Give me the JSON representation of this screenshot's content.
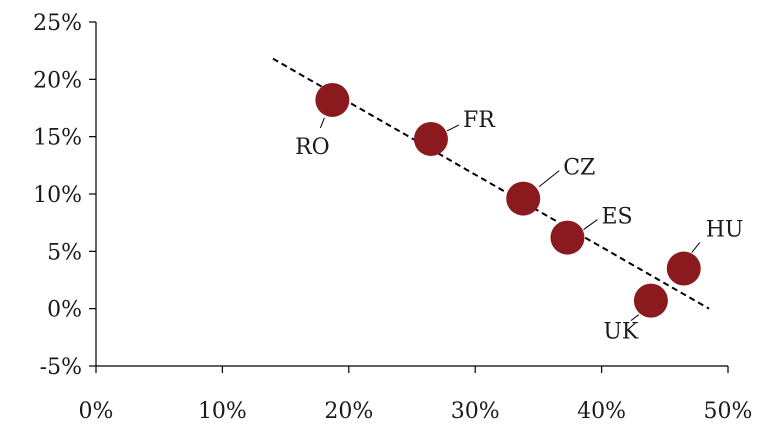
{
  "chart_data": {
    "type": "scatter",
    "title": "",
    "xlabel": "",
    "ylabel": "",
    "xlim": [
      0,
      50
    ],
    "ylim": [
      -5,
      25
    ],
    "x_ticks": [
      0,
      10,
      20,
      30,
      40,
      50
    ],
    "y_ticks": [
      -5,
      0,
      5,
      10,
      15,
      20,
      25
    ],
    "x_tick_labels": [
      "0%",
      "10%",
      "20%",
      "30%",
      "40%",
      "50%"
    ],
    "y_tick_labels": [
      "-5%",
      "0%",
      "5%",
      "10%",
      "15%",
      "20%",
      "25%"
    ],
    "grid": false,
    "legend": "none",
    "marker_color": "#8b1a1f",
    "points": [
      {
        "label": "RO",
        "x": 18.7,
        "y": 18.2
      },
      {
        "label": "FR",
        "x": 26.5,
        "y": 14.8
      },
      {
        "label": "CZ",
        "x": 33.8,
        "y": 9.6
      },
      {
        "label": "ES",
        "x": 37.3,
        "y": 6.2
      },
      {
        "label": "UK",
        "x": 43.9,
        "y": 0.7
      },
      {
        "label": "HU",
        "x": 46.5,
        "y": 3.5
      }
    ],
    "trendline": {
      "style": "dashed",
      "x": [
        14,
        48.5
      ],
      "y": [
        21.8,
        0
      ]
    }
  }
}
